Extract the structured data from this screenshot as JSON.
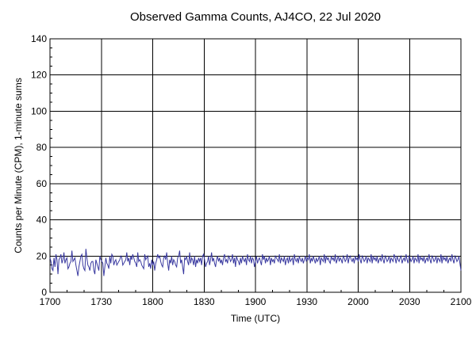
{
  "chart_data": {
    "type": "line",
    "title": "Observed Gamma Counts, AJ4CO, 22 Jul 2020",
    "xlabel": "Time (UTC)",
    "ylabel": "Counts per Minute (CPM), 1-minute sums",
    "x_tick_labels": [
      "1700",
      "1730",
      "1800",
      "1830",
      "1900",
      "1930",
      "2000",
      "2030",
      "2100"
    ],
    "y_tick_labels": [
      "0",
      "20",
      "40",
      "60",
      "80",
      "100",
      "120",
      "140"
    ],
    "ylim": [
      0,
      140
    ],
    "x_start": "17:00",
    "x_step_minutes": 1,
    "grid": true,
    "colors": {
      "series": "#3a3aa0",
      "grid": "#000000"
    },
    "series": [
      {
        "name": "",
        "values": [
          19,
          17,
          13,
          12,
          19,
          14,
          21,
          18,
          10,
          18,
          19,
          21,
          16,
          18,
          22,
          16,
          18,
          19,
          13,
          14,
          16,
          17,
          23,
          17,
          18,
          19,
          15,
          12,
          9,
          14,
          17,
          20,
          21,
          15,
          13,
          12,
          24,
          19,
          15,
          14,
          12,
          16,
          17,
          17,
          12,
          10,
          18,
          16,
          14,
          12,
          20,
          18,
          17,
          16,
          9,
          14,
          19,
          16,
          15,
          13,
          20,
          16,
          21,
          20,
          15,
          17,
          18,
          15,
          16,
          17,
          18,
          20,
          19,
          15,
          16,
          17,
          18,
          22,
          17,
          19,
          15,
          20,
          18,
          21,
          19,
          17,
          16,
          14,
          22,
          17,
          18,
          17,
          15,
          14,
          13,
          21,
          18,
          19,
          20,
          14,
          16,
          13,
          18,
          15,
          17,
          12,
          16,
          18,
          21,
          19,
          20,
          17,
          15,
          14,
          19,
          20,
          18,
          22,
          16,
          12,
          18,
          16,
          20,
          15,
          18,
          17,
          15,
          14,
          19,
          20,
          23,
          16,
          18,
          14,
          10,
          19,
          18,
          20,
          17,
          15,
          22,
          16,
          19,
          18,
          15,
          20,
          14,
          18,
          16,
          19,
          17,
          19,
          15,
          20,
          21,
          18,
          14,
          16,
          17,
          20,
          15,
          18,
          22,
          17,
          19,
          16,
          14,
          18,
          20,
          17,
          19,
          16,
          18,
          15,
          19,
          21,
          17,
          18,
          16,
          20,
          19,
          17,
          18,
          21,
          16,
          19,
          14,
          20,
          18,
          17,
          15,
          19,
          16,
          20,
          18,
          17,
          19,
          15,
          21,
          18,
          17,
          20,
          16,
          19,
          18,
          14,
          17,
          20,
          16,
          18,
          19,
          17,
          15,
          21,
          18,
          20,
          16,
          19,
          17,
          18,
          20,
          15,
          19,
          17,
          18,
          16,
          20,
          19,
          18,
          17,
          21,
          16,
          19,
          18,
          17,
          20,
          15,
          18,
          19,
          16,
          20,
          17,
          18,
          19,
          15,
          21,
          18,
          17,
          19,
          16,
          20,
          18,
          17,
          19,
          16,
          18,
          20,
          17,
          19,
          18,
          21,
          16,
          19,
          17,
          20,
          18,
          16,
          19,
          17,
          18,
          20,
          15,
          19,
          18,
          17,
          21,
          16,
          20,
          18,
          19,
          17,
          16,
          20,
          18,
          19,
          17,
          21,
          16,
          18,
          20,
          17,
          19,
          18,
          16,
          20,
          19,
          17,
          18,
          21,
          16,
          19,
          20,
          18,
          17,
          19,
          16,
          20,
          18,
          19,
          17,
          21,
          18,
          16,
          20,
          19,
          17,
          18,
          20,
          16,
          19,
          18,
          17,
          21,
          16,
          20,
          18,
          19,
          17,
          20,
          16,
          18,
          19,
          17,
          21,
          18,
          16,
          20,
          19,
          17,
          18,
          20,
          16,
          19,
          18,
          17,
          21,
          19,
          16,
          20,
          18,
          17,
          19,
          20,
          16,
          18,
          19,
          17,
          21,
          18,
          16,
          20,
          19,
          17,
          18,
          20,
          16,
          19,
          18,
          17,
          21,
          16,
          20,
          18,
          19,
          17,
          20,
          16,
          18,
          19,
          17,
          21,
          18,
          16,
          20,
          19,
          17,
          18,
          20,
          16,
          19,
          18,
          17,
          21,
          16,
          20,
          18,
          19,
          17,
          20,
          16,
          18,
          19,
          17,
          21,
          18,
          16,
          20,
          19,
          17,
          18,
          20,
          16,
          12
        ]
      }
    ]
  }
}
